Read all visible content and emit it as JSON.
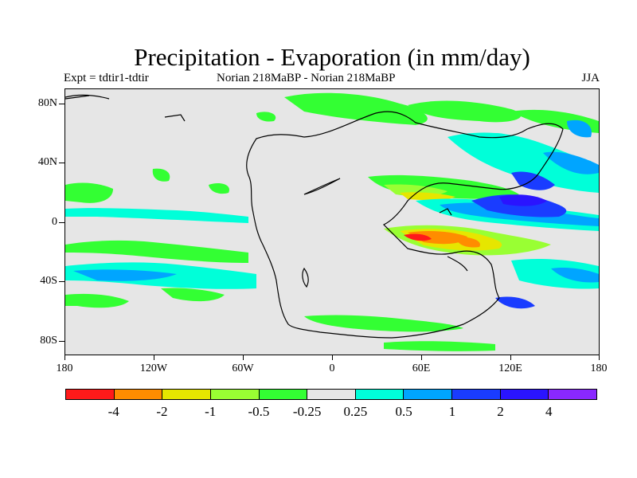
{
  "title": "Precipitation - Evaporation (in mm/day)",
  "subtitle_left": "Expt = tdtir1-tdtir",
  "subtitle_center": "Norian   218MaBP - Norian   218MaBP",
  "subtitle_right": "JJA",
  "y_ticks": [
    "80N",
    "40N",
    "0",
    "40S",
    "80S"
  ],
  "x_ticks": [
    "180",
    "120W",
    "60W",
    "0",
    "60E",
    "120E",
    "180"
  ],
  "legend": {
    "colors": [
      "#ff1a1a",
      "#ff8c00",
      "#e6e600",
      "#99ff33",
      "#33ff33",
      "#e6e6e6",
      "#00ffd9",
      "#00a5ff",
      "#1a3cff",
      "#2a14ff",
      "#8a28ff"
    ],
    "labels": [
      "-4",
      "-2",
      "-1",
      "-0.5",
      "-0.25",
      "0.25",
      "0.5",
      "1",
      "2",
      "4"
    ]
  },
  "colors": {
    "background": "#e6e6e6",
    "coast": "#000000"
  }
}
